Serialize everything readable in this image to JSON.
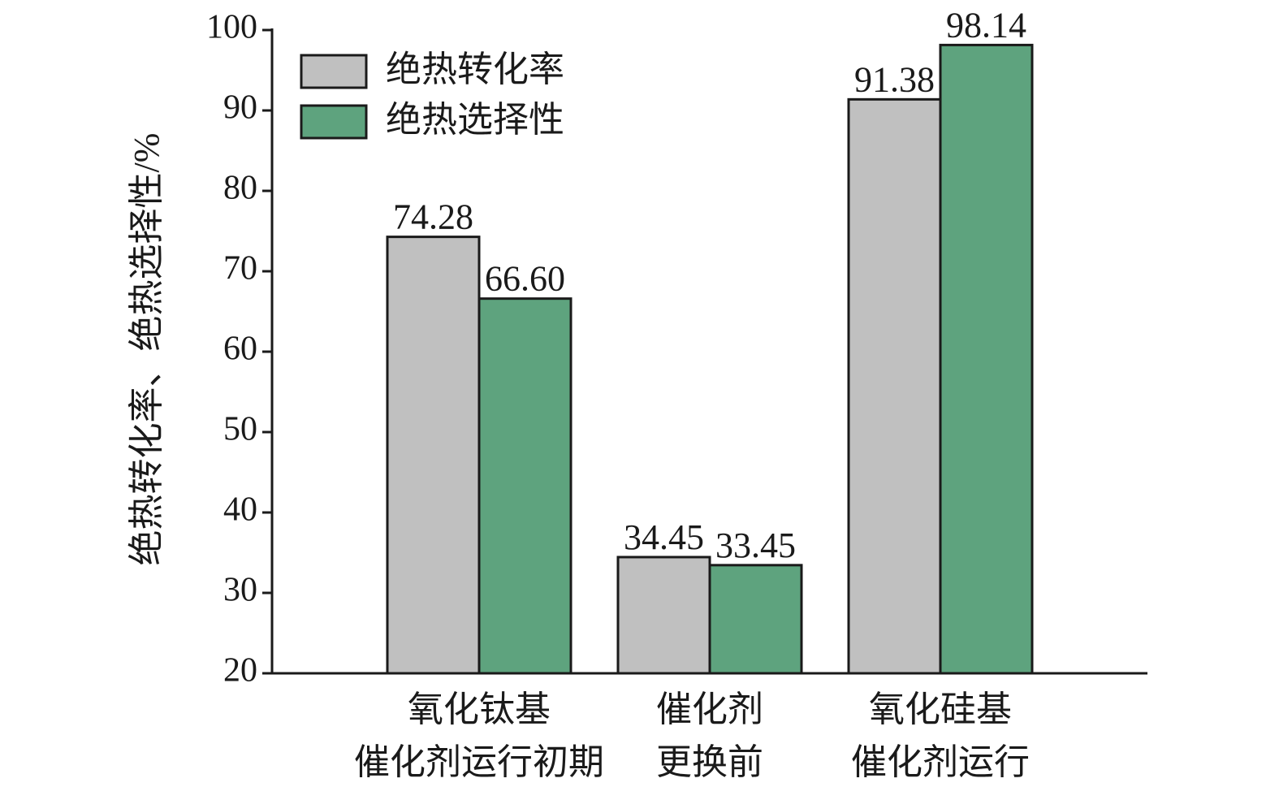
{
  "chart_data": {
    "type": "bar",
    "y_label": "绝热转化率、绝热选择性/%",
    "categories": [
      [
        "氧化钛基",
        "催化剂运行初期"
      ],
      [
        "催化剂",
        "更换前"
      ],
      [
        "氧化硅基",
        "催化剂运行"
      ]
    ],
    "series": [
      {
        "name": "绝热转化率",
        "color": "#c0c0c0",
        "values": [
          74.28,
          34.45,
          91.38
        ],
        "value_labels": [
          "74.28",
          "34.45",
          "91.38"
        ]
      },
      {
        "name": "绝热选择性",
        "color": "#5ea37e",
        "values": [
          66.6,
          33.45,
          98.14
        ],
        "value_labels": [
          "66.60",
          "33.45",
          "98.14"
        ]
      }
    ],
    "ylim": [
      20,
      100
    ],
    "yticks": [
      20,
      30,
      40,
      50,
      60,
      70,
      80,
      90,
      100
    ],
    "legend": "upper left"
  }
}
